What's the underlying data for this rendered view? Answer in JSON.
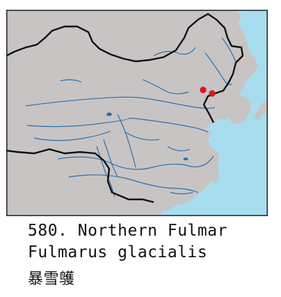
{
  "species": {
    "number_and_name": "580. Northern Fulmar",
    "scientific_name": "Fulmarus glacialis",
    "chinese_name": "暴雪鹱"
  },
  "map": {
    "colors": {
      "sea": "#a8dcef",
      "land": "#c8c4c4",
      "rivers": "#2b6fb0",
      "border": "#111111",
      "frame": "#222222",
      "record_dots": "#e0141c"
    },
    "record_marker_count": 2
  }
}
